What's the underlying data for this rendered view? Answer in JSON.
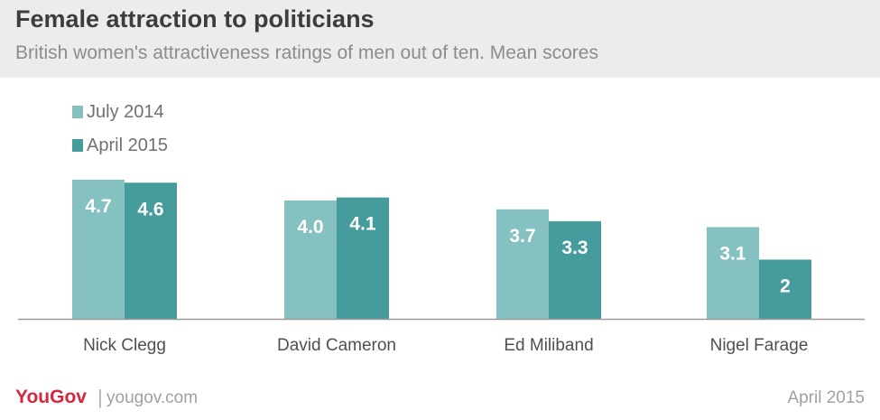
{
  "header": {
    "title": "Female attraction to politicians",
    "subtitle": "British women's attractiveness ratings of men out of ten. Mean scores"
  },
  "colors": {
    "series_july_2014": "#86c1c2",
    "series_april_2015": "#469c9c",
    "header_bg": "#ececec",
    "brand_red": "#d6283c"
  },
  "chart_data": {
    "type": "bar",
    "title": "Female attraction to politicians",
    "subtitle": "British women's attractiveness ratings of men out of ten. Mean scores",
    "categories": [
      "Nick Clegg",
      "David Cameron",
      "Ed Miliband",
      "Nigel Farage"
    ],
    "series": [
      {
        "name": "July 2014",
        "values": [
          4.7,
          4.0,
          3.7,
          3.1
        ],
        "labels": [
          "4.7",
          "4.0",
          "3.7",
          "3.1"
        ]
      },
      {
        "name": "April 2015",
        "values": [
          4.6,
          4.1,
          3.3,
          2.0
        ],
        "labels": [
          "4.6",
          "4.1",
          "3.3",
          "2"
        ]
      }
    ],
    "ylim": [
      0,
      5
    ],
    "grid": false,
    "legend_position": "top-left"
  },
  "footer": {
    "logo": "YouGov",
    "url": "yougov.com",
    "date": "April 2015"
  }
}
